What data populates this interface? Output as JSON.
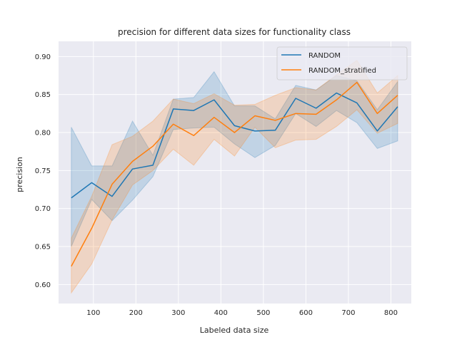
{
  "chart_data": {
    "type": "line",
    "title": "precision for different data sizes for functionality class",
    "xlabel": "Labeled data size",
    "ylabel": "precision",
    "xlim": [
      18,
      848
    ],
    "ylim": [
      0.575,
      0.92
    ],
    "xticks": [
      100,
      200,
      300,
      400,
      500,
      600,
      700,
      800
    ],
    "yticks": [
      0.6,
      0.65,
      0.7,
      0.75,
      0.8,
      0.85,
      0.9
    ],
    "x": [
      48,
      96,
      144,
      192,
      240,
      288,
      336,
      384,
      432,
      480,
      528,
      576,
      624,
      672,
      720,
      768,
      816
    ],
    "grid": true,
    "legend_position": "top-right",
    "series": [
      {
        "name": "RANDOM",
        "color": "#1f77b4",
        "values": [
          0.714,
          0.734,
          0.716,
          0.752,
          0.757,
          0.831,
          0.829,
          0.843,
          0.809,
          0.802,
          0.803,
          0.845,
          0.832,
          0.852,
          0.839,
          0.802,
          0.834
        ],
        "lower": [
          0.65,
          0.712,
          0.684,
          0.711,
          0.742,
          0.804,
          0.806,
          0.807,
          0.785,
          0.767,
          0.783,
          0.825,
          0.808,
          0.829,
          0.813,
          0.779,
          0.789
        ],
        "upper": [
          0.807,
          0.756,
          0.756,
          0.815,
          0.77,
          0.844,
          0.846,
          0.88,
          0.835,
          0.835,
          0.818,
          0.862,
          0.856,
          0.875,
          0.868,
          0.83,
          0.867
        ]
      },
      {
        "name": "RANDOM_stratified",
        "color": "#ff7f0e",
        "values": [
          0.624,
          0.674,
          0.732,
          0.762,
          0.782,
          0.811,
          0.796,
          0.82,
          0.8,
          0.822,
          0.816,
          0.825,
          0.824,
          0.843,
          0.866,
          0.825,
          0.849
        ],
        "lower": [
          0.589,
          0.627,
          0.685,
          0.731,
          0.75,
          0.778,
          0.757,
          0.791,
          0.769,
          0.807,
          0.78,
          0.79,
          0.791,
          0.808,
          0.83,
          0.799,
          0.812
        ],
        "upper": [
          0.661,
          0.716,
          0.784,
          0.795,
          0.815,
          0.844,
          0.838,
          0.851,
          0.836,
          0.837,
          0.849,
          0.859,
          0.856,
          0.876,
          0.895,
          0.852,
          0.875
        ]
      }
    ]
  }
}
